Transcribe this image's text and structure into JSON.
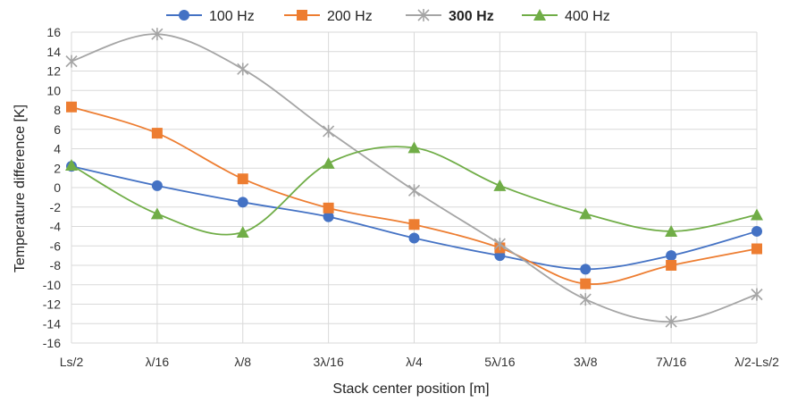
{
  "chart_data": {
    "type": "line",
    "xlabel": "Stack center position [m]",
    "ylabel": "Temperature   difference  [K]",
    "categories": [
      "Ls/2",
      "λ/16",
      "λ/8",
      "3λ/16",
      "λ/4",
      "5λ/16",
      "3λ/8",
      "7λ/16",
      "λ/2-Ls/2"
    ],
    "ylim": [
      -16,
      16
    ],
    "yticks": [
      -16,
      -14,
      -12,
      -10,
      -8,
      -6,
      -4,
      -2,
      0,
      2,
      4,
      6,
      8,
      10,
      12,
      14,
      16
    ],
    "ytick_labels": [
      "-16",
      "-14",
      "-12",
      "-10",
      "-8",
      "-6",
      "-4",
      "-2",
      "0",
      "2",
      "4",
      "6",
      "8",
      "10",
      "12",
      "14",
      "16"
    ],
    "grid": true,
    "legend_position": "top",
    "series": [
      {
        "name": "100 Hz",
        "color": "#4472C4",
        "marker": "circle",
        "values": [
          2.2,
          0.2,
          -1.5,
          -3.0,
          -5.2,
          -7.0,
          -8.4,
          -7.0,
          -4.5
        ]
      },
      {
        "name": "200 Hz",
        "color": "#ED7D31",
        "marker": "square",
        "values": [
          8.3,
          5.6,
          0.9,
          -2.1,
          -3.8,
          -6.2,
          -9.9,
          -8.0,
          -6.3
        ]
      },
      {
        "name": "300 Hz",
        "color": "#A5A5A5",
        "marker": "star",
        "bold": true,
        "values": [
          13.0,
          15.8,
          12.2,
          5.8,
          -0.3,
          -5.8,
          -11.5,
          -13.8,
          -11.0
        ]
      },
      {
        "name": "400 Hz",
        "color": "#70AD47",
        "marker": "triangle",
        "values": [
          2.3,
          -2.7,
          -4.6,
          2.5,
          4.1,
          0.2,
          -2.7,
          -4.5,
          -2.8
        ]
      }
    ]
  }
}
